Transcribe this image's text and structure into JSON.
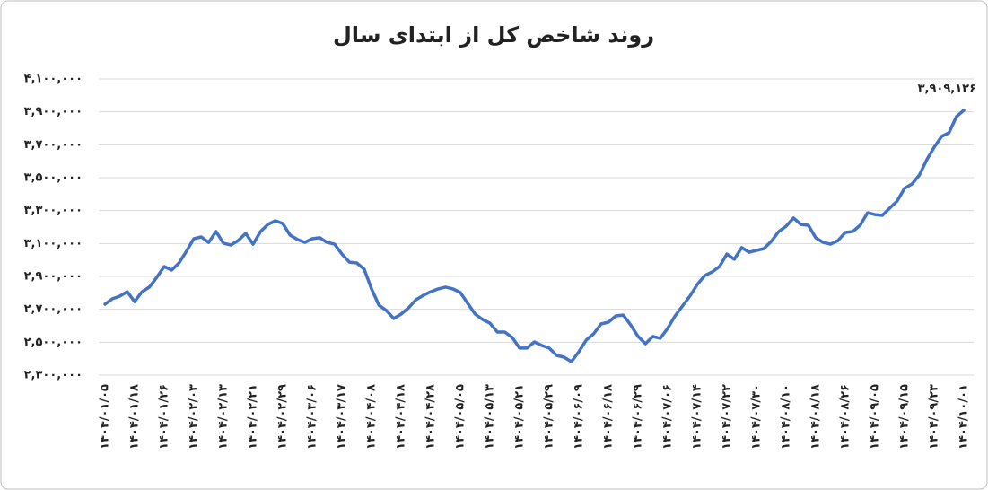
{
  "chart_data": {
    "type": "line",
    "title": "روند شاخص کل از ابتدای سال",
    "categories": [
      "۱۴۰۴/۰۱/۰۵",
      null,
      null,
      null,
      "۱۴۰۴/۰۱/۱۸",
      null,
      null,
      null,
      "۱۴۰۴/۰۱/۲۶",
      null,
      null,
      null,
      "۱۴۰۴/۰۲/۰۳",
      null,
      null,
      null,
      "۱۴۰۴/۰۲/۱۳",
      null,
      null,
      null,
      "۱۴۰۴/۰۲/۲۱",
      null,
      null,
      null,
      "۱۴۰۴/۰۲/۲۹",
      null,
      null,
      null,
      "۱۴۰۴/۰۳/۰۶",
      null,
      null,
      null,
      "۱۴۰۴/۰۳/۱۷",
      null,
      null,
      null,
      "۱۴۰۴/۰۴/۰۸",
      null,
      null,
      null,
      "۱۴۰۴/۰۴/۱۸",
      null,
      null,
      null,
      "۱۴۰۴/۰۴/۲۸",
      null,
      null,
      null,
      "۱۴۰۴/۰۵/۰۵",
      null,
      null,
      null,
      "۱۴۰۴/۰۵/۱۳",
      null,
      null,
      null,
      "۱۴۰۴/۰۵/۲۱",
      null,
      null,
      null,
      "۱۴۰۴/۰۵/۲۹",
      null,
      null,
      null,
      "۱۴۰۴/۰۶/۰۹",
      null,
      null,
      null,
      "۱۴۰۴/۰۶/۱۸",
      null,
      null,
      null,
      "۱۴۰۴/۰۶/۲۹",
      null,
      null,
      null,
      "۱۴۰۴/۰۷/۰۶",
      null,
      null,
      null,
      "۱۴۰۴/۰۷/۱۴",
      null,
      null,
      null,
      "۱۴۰۴/۰۷/۲۲",
      null,
      null,
      null,
      "۱۴۰۴/۰۷/۳۰",
      null,
      null,
      null,
      "۱۴۰۴/۰۸/۱۰",
      null,
      null,
      null,
      "۱۴۰۴/۰۸/۱۸",
      null,
      null,
      null,
      "۱۴۰۴/۰۸/۲۶",
      null,
      null,
      null,
      "۱۴۰۴/۰۹/۰۵",
      null,
      null,
      null,
      "۱۴۰۴/۰۹/۱۵",
      null,
      null,
      null,
      "۱۴۰۴/۰۹/۲۳",
      null,
      null,
      null,
      "۱۴۰۴/۱۰/۰۱"
    ],
    "values": [
      2731000,
      2764000,
      2780000,
      2807000,
      2747000,
      2807000,
      2835000,
      2895000,
      2960000,
      2938000,
      2982000,
      3053000,
      3129000,
      3140000,
      3107000,
      3173000,
      3102000,
      3091000,
      3118000,
      3162000,
      3096000,
      3173000,
      3216000,
      3238000,
      3222000,
      3151000,
      3124000,
      3107000,
      3129000,
      3135000,
      3107000,
      3096000,
      3036000,
      2987000,
      2982000,
      2944000,
      2824000,
      2725000,
      2693000,
      2644000,
      2671000,
      2709000,
      2758000,
      2785000,
      2807000,
      2824000,
      2835000,
      2824000,
      2802000,
      2736000,
      2671000,
      2638000,
      2616000,
      2562000,
      2562000,
      2529000,
      2464000,
      2464000,
      2502000,
      2480000,
      2464000,
      2420000,
      2409000,
      2382000,
      2442000,
      2513000,
      2551000,
      2611000,
      2622000,
      2660000,
      2665000,
      2605000,
      2535000,
      2491000,
      2535000,
      2524000,
      2584000,
      2660000,
      2720000,
      2780000,
      2851000,
      2905000,
      2927000,
      2960000,
      3036000,
      3004000,
      3075000,
      3047000,
      3058000,
      3069000,
      3113000,
      3173000,
      3205000,
      3255000,
      3216000,
      3211000,
      3135000,
      3107000,
      3096000,
      3118000,
      3167000,
      3173000,
      3211000,
      3287000,
      3276000,
      3271000,
      3315000,
      3358000,
      3435000,
      3462000,
      3516000,
      3609000,
      3685000,
      3751000,
      3773000,
      3871000,
      3909126
    ],
    "value_labels": [
      null,
      null,
      null,
      null,
      null,
      null,
      null,
      null,
      null,
      null,
      null,
      null,
      null,
      null,
      null,
      null,
      null,
      null,
      null,
      null,
      null,
      null,
      null,
      null,
      null,
      null,
      null,
      null,
      null,
      null,
      null,
      null,
      null,
      null,
      null,
      null,
      null,
      null,
      null,
      null,
      null,
      null,
      null,
      null,
      null,
      null,
      null,
      null,
      null,
      null,
      null,
      null,
      null,
      null,
      null,
      null,
      null,
      null,
      null,
      null,
      null,
      null,
      null,
      null,
      null,
      null,
      null,
      null,
      null,
      null,
      null,
      null,
      null,
      null,
      null,
      null,
      null,
      null,
      null,
      null,
      null,
      null,
      null,
      null,
      null,
      null,
      null,
      null,
      null,
      null,
      null,
      null,
      null,
      null,
      null,
      null,
      null,
      null,
      null,
      null,
      null,
      null,
      null,
      null,
      null,
      null,
      null,
      null,
      null,
      null,
      null,
      null,
      null,
      null,
      null,
      null,
      "۳,۹۰۹,۱۲۶"
    ],
    "color": "#4472c4",
    "ylim": [
      2300000,
      4100000
    ],
    "yticks": [
      {
        "value": 2300000,
        "label": "۲,۳۰۰,۰۰۰"
      },
      {
        "value": 2500000,
        "label": "۲,۵۰۰,۰۰۰"
      },
      {
        "value": 2700000,
        "label": "۲,۷۰۰,۰۰۰"
      },
      {
        "value": 2900000,
        "label": "۲,۹۰۰,۰۰۰"
      },
      {
        "value": 3100000,
        "label": "۳,۱۰۰,۰۰۰"
      },
      {
        "value": 3300000,
        "label": "۳,۳۰۰,۰۰۰"
      },
      {
        "value": 3500000,
        "label": "۳,۵۰۰,۰۰۰"
      },
      {
        "value": 3700000,
        "label": "۳,۷۰۰,۰۰۰"
      },
      {
        "value": 3900000,
        "label": "۳,۹۰۰,۰۰۰"
      },
      {
        "value": 4100000,
        "label": "۴,۱۰۰,۰۰۰"
      }
    ],
    "grid": true
  }
}
